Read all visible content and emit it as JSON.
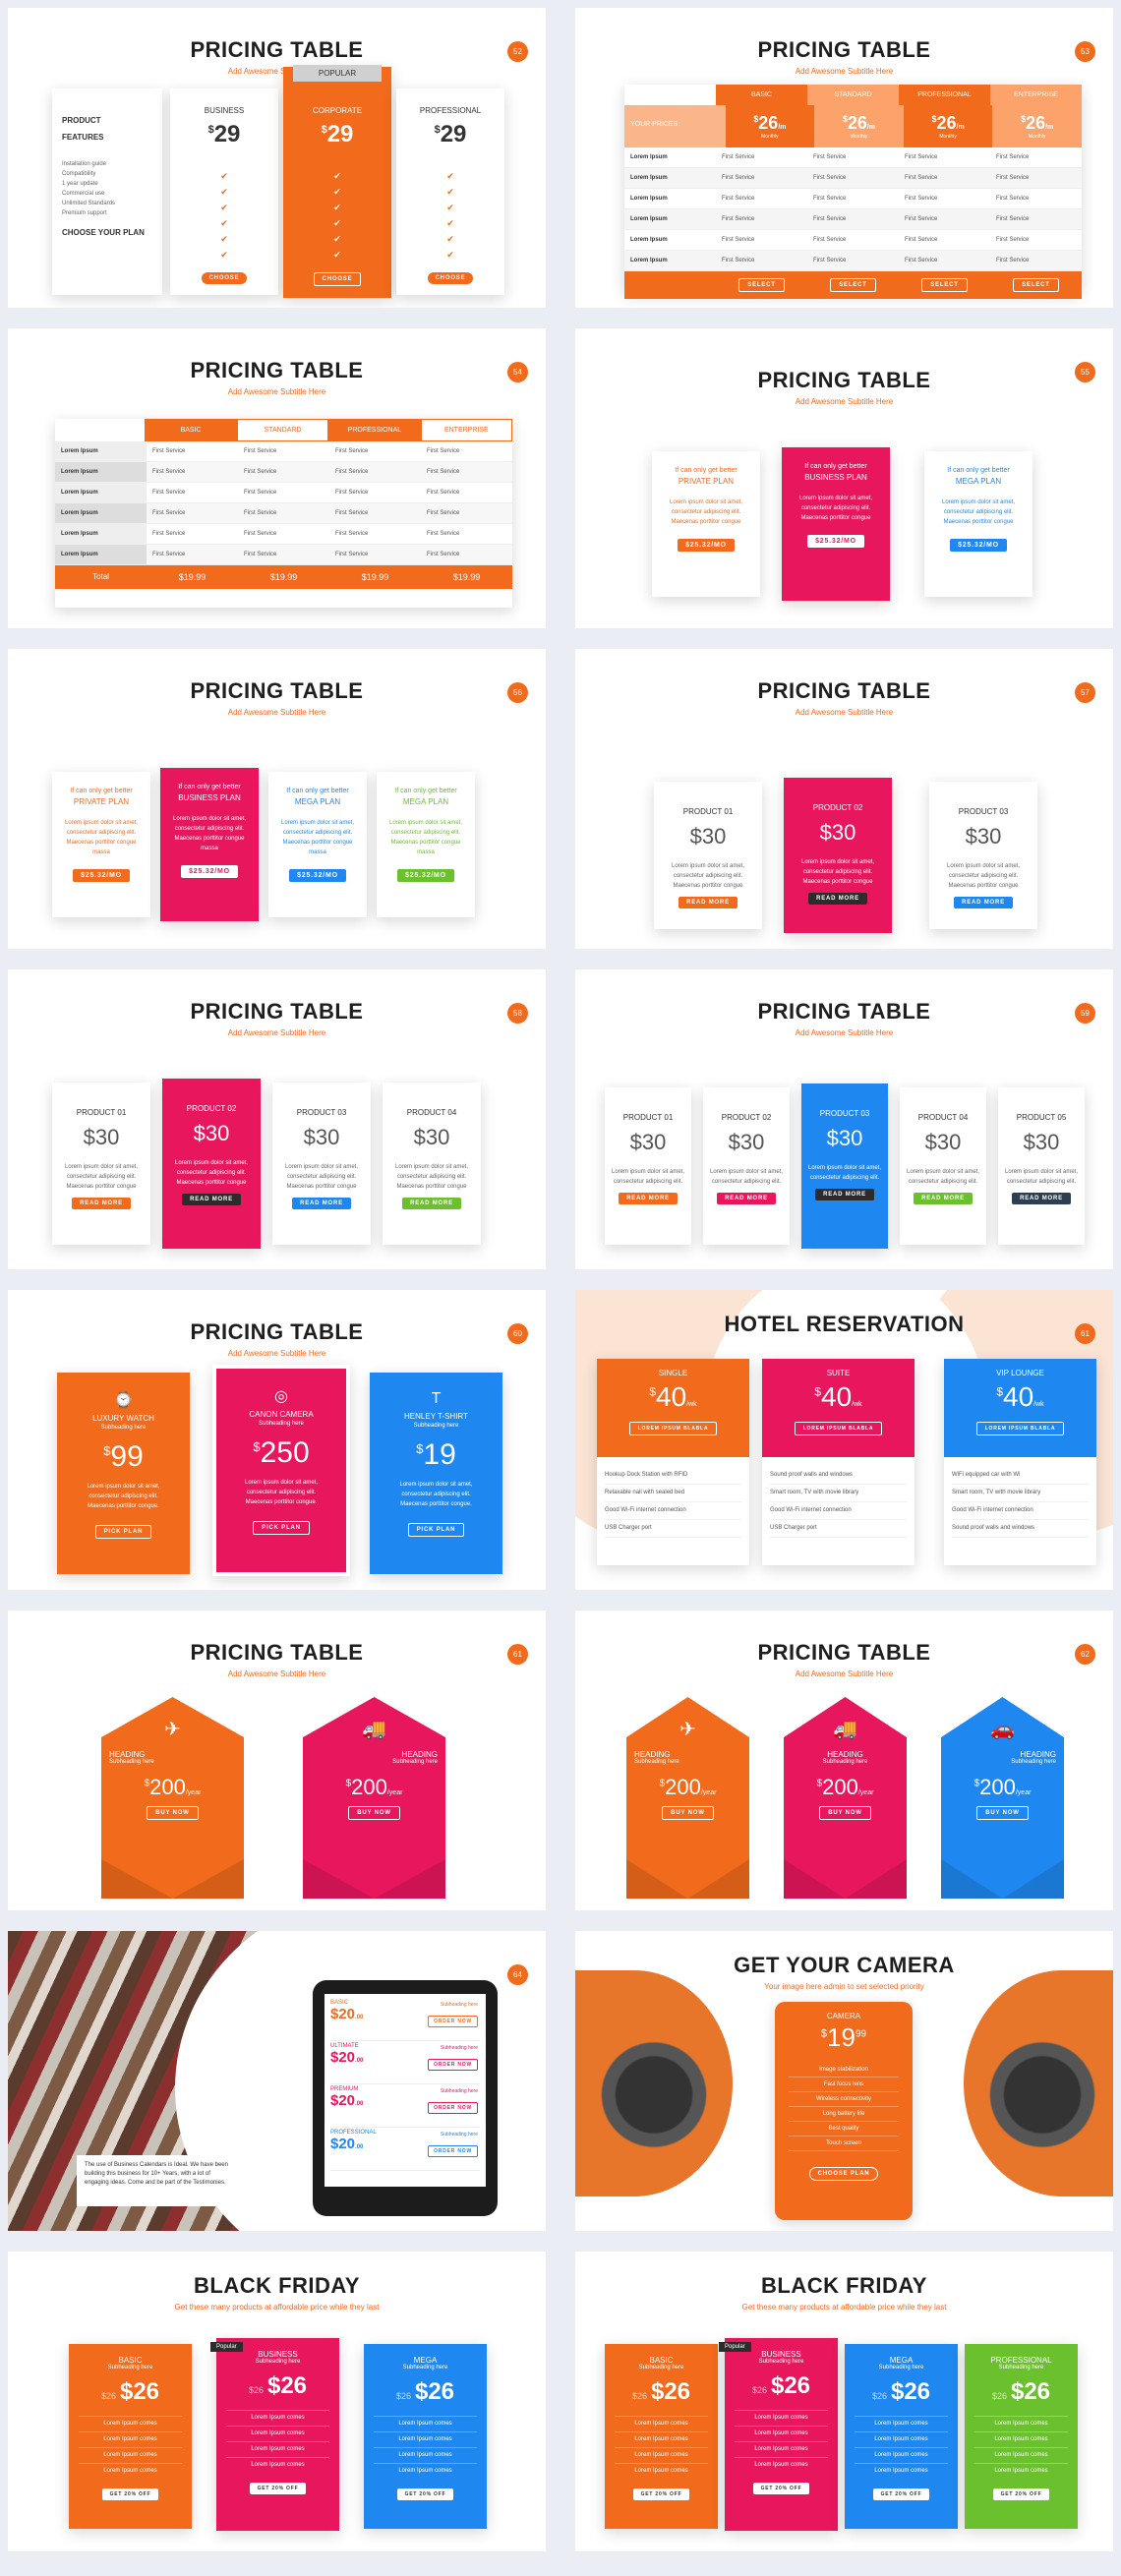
{
  "colors": {
    "orange": "#f26a1b",
    "pink": "#e8175d",
    "blue": "#1e88f0",
    "green": "#6bc02e",
    "dark": "#2c3e50"
  },
  "s1": {
    "title": "PRICING TABLE",
    "sub": "Add Awesome Subtitle Here",
    "num": "52",
    "product": "PRODUCT",
    "features": "FEATURES",
    "choose": "CHOOSE YOUR PLAN",
    "feats": [
      "Installation guide",
      "Compatibility",
      "1 year update",
      "Commercial use",
      "Unlimited Standards",
      "Premium support"
    ],
    "plans": [
      {
        "name": "BUSINESS",
        "price": "29"
      },
      {
        "name": "CORPORATE",
        "price": "29",
        "badge": "POPULAR"
      },
      {
        "name": "PROFESSIONAL",
        "price": "29"
      }
    ],
    "btn": "CHOOSE"
  },
  "s2": {
    "title": "PRICING TABLE",
    "sub": "Add Awesome Subtitle Here",
    "num": "53",
    "row_label": "YOUR PRICES",
    "plans": [
      "BASIC",
      "STANDARD",
      "PROFESSIONAL",
      "ENTERPRISE"
    ],
    "price": "26",
    "per": "/m",
    "monthly": "Monthly",
    "lorem": "Lorem Ipsum",
    "cell": "First Service",
    "btn": "SELECT"
  },
  "s3": {
    "title": "PRICING TABLE",
    "sub": "Add Awesome Subtitle Here",
    "num": "54",
    "plans": [
      "BASIC",
      "STANDARD",
      "PROFESSIONAL",
      "ENTERPRISE"
    ],
    "lorem": "Lorem Ipsum",
    "cell": "First Service",
    "total": "Total",
    "price": "$19.99"
  },
  "s4": {
    "title": "PRICING TABLE",
    "sub": "Add Awesome Subtitle Here",
    "num": "55",
    "small": "If can only get better",
    "plans": [
      "PRIVATE PLAN",
      "BUSINESS PLAN",
      "MEGA PLAN"
    ],
    "desc": [
      "Lorem ipsum dolor sit amet,",
      "consectetur adipiscing elit.",
      "Maecenas porttitor congue"
    ],
    "price": "$25.32/MO"
  },
  "s5": {
    "title": "PRICING TABLE",
    "sub": "Add Awesome Subtitle Here",
    "num": "56",
    "small": "If can only get better",
    "plans": [
      "PRIVATE PLAN",
      "BUSINESS PLAN",
      "MEGA PLAN",
      "MEGA PLAN"
    ],
    "desc": [
      "Lorem ipsum dolor sit amet,",
      "consectetur adipiscing elit.",
      "Maecenas porttitor congue",
      "massa"
    ],
    "price": "$25.32/MO"
  },
  "s6": {
    "title": "PRICING TABLE",
    "sub": "Add Awesome Subtitle Here",
    "num": "57",
    "plans": [
      "PRODUCT 01",
      "PRODUCT 02",
      "PRODUCT 03"
    ],
    "price": "$30",
    "desc": [
      "Lorem ipsum dolor sit amet,",
      "consectetur adipiscing elit.",
      "Maecenas porttitor congue"
    ],
    "btn": "READ MORE"
  },
  "s7": {
    "title": "PRICING TABLE",
    "sub": "Add Awesome Subtitle Here",
    "num": "58",
    "plans": [
      "PRODUCT 01",
      "PRODUCT 02",
      "PRODUCT 03",
      "PRODUCT 04"
    ],
    "price": "$30",
    "desc": [
      "Lorem ipsum dolor sit amet,",
      "consectetur adipiscing elit.",
      "Maecenas porttitor congue"
    ],
    "btn": "READ MORE"
  },
  "s8": {
    "title": "PRICING TABLE",
    "sub": "Add Awesome Subtitle Here",
    "num": "59",
    "plans": [
      "PRODUCT 01",
      "PRODUCT 02",
      "PRODUCT 03",
      "PRODUCT 04",
      "PRODUCT 05"
    ],
    "price": "$30",
    "desc": [
      "Lorem ipsum dolor sit amet,",
      "consectetur adipiscing elit."
    ],
    "btn": "READ MORE"
  },
  "s9": {
    "title": "PRICING TABLE",
    "sub": "Add Awesome Subtitle Here",
    "num": "60",
    "plans": [
      {
        "name": "LUXURY WATCH",
        "price": "99",
        "icon": "watch-icon"
      },
      {
        "name": "CANON CAMERA",
        "price": "250",
        "icon": "camera-icon"
      },
      {
        "name": "HENLEY T-SHIRT",
        "price": "19",
        "icon": "tshirt-icon"
      }
    ],
    "subhead": "Subheading here",
    "desc": [
      "Lorem ipsum dolor sit amet,",
      "consectetur adipiscing elit.",
      "Maecenas porttitor congue."
    ],
    "btn": "PICK PLAN"
  },
  "s10": {
    "title": "HOTEL RESERVATION",
    "num": "61",
    "plans": [
      "SINGLE",
      "SUITE",
      "VIP LOUNGE"
    ],
    "price": "40",
    "per": "/wk",
    "btn": "LOREM IPSUM BLABLA",
    "rows": [
      [
        "Hookup Dock Station with RFID",
        "Relaxable nail with sealed bed",
        "Good Wi-Fi internet connection",
        "USB Charger port"
      ],
      [
        "Sound proof walls and windows",
        "Smart room, TV with movie library",
        "Good Wi-Fi internet connection",
        "USB Charger port"
      ],
      [
        "WiFi equipped car with Wi",
        "Smart room, TV with movie library",
        "Good Wi-Fi internet connection",
        "Sound proof walls and windows"
      ]
    ]
  },
  "s11": {
    "title": "PRICING TABLE",
    "sub": "Add Awesome Subtitle Here",
    "num": "61",
    "heading": "HEADING",
    "subhead": "Subheading here",
    "price": "200",
    "per": "/year",
    "btn": "BUY NOW"
  },
  "s12": {
    "title": "PRICING TABLE",
    "sub": "Add Awesome Subtitle Here",
    "num": "62",
    "heading": "HEADING",
    "subhead": "Subheading here",
    "price": "200",
    "per": "/year",
    "btn": "BUY NOW"
  },
  "s13": {
    "num": "64",
    "plans": [
      {
        "name": "BASIC",
        "price": "$20",
        "unit": ".00"
      },
      {
        "name": "ULTIMATE",
        "price": "$20",
        "unit": ".00"
      },
      {
        "name": "PREMIUM",
        "price": "$20",
        "unit": ".00"
      },
      {
        "name": "PROFESSIONAL",
        "price": "$20",
        "unit": ".00"
      }
    ],
    "subhead": "Subheading here",
    "btn": "ORDER NOW",
    "body": [
      "The use of Business Calendars is Ideal. We have been",
      "building this business for 10+ Years, with a lot of",
      "engaging ideas. Come and be part of the Testimonies."
    ]
  },
  "s14": {
    "title": "GET YOUR CAMERA",
    "sub": "Your image here admin to set selected priority",
    "plan": "CAMERA",
    "price": "19",
    "cents": "99",
    "items": [
      "Image stabilization",
      "Fast focus lens",
      "Wireless connectivity",
      "Long battery life",
      "Best quality",
      "Touch screen"
    ],
    "btn": "CHOOSE PLAN"
  },
  "s15": {
    "title": "BLACK FRIDAY",
    "sub": "Get these many products at affordable price while they last",
    "plans": [
      "BASIC",
      "BUSINESS",
      "MEGA"
    ],
    "badge": "Popular",
    "subhead": "Subheading here",
    "old": "$26",
    "price": "$26",
    "items": [
      "Lorem Ipsum comes",
      "Lorem Ipsum comes",
      "Lorem Ipsum comes",
      "Lorem Ipsum comes"
    ],
    "btn": "GET 20% OFF"
  },
  "s16": {
    "title": "BLACK FRIDAY",
    "sub": "Get these many products at affordable price while they last",
    "plans": [
      "BASIC",
      "BUSINESS",
      "MEGA",
      "PROFESSIONAL"
    ],
    "badge": "Popular",
    "subhead": "Subheading here",
    "old": "$26",
    "price": "$26",
    "items": [
      "Lorem Ipsum comes",
      "Lorem Ipsum comes",
      "Lorem Ipsum comes",
      "Lorem Ipsum comes"
    ],
    "btn": "GET 20% OFF"
  }
}
